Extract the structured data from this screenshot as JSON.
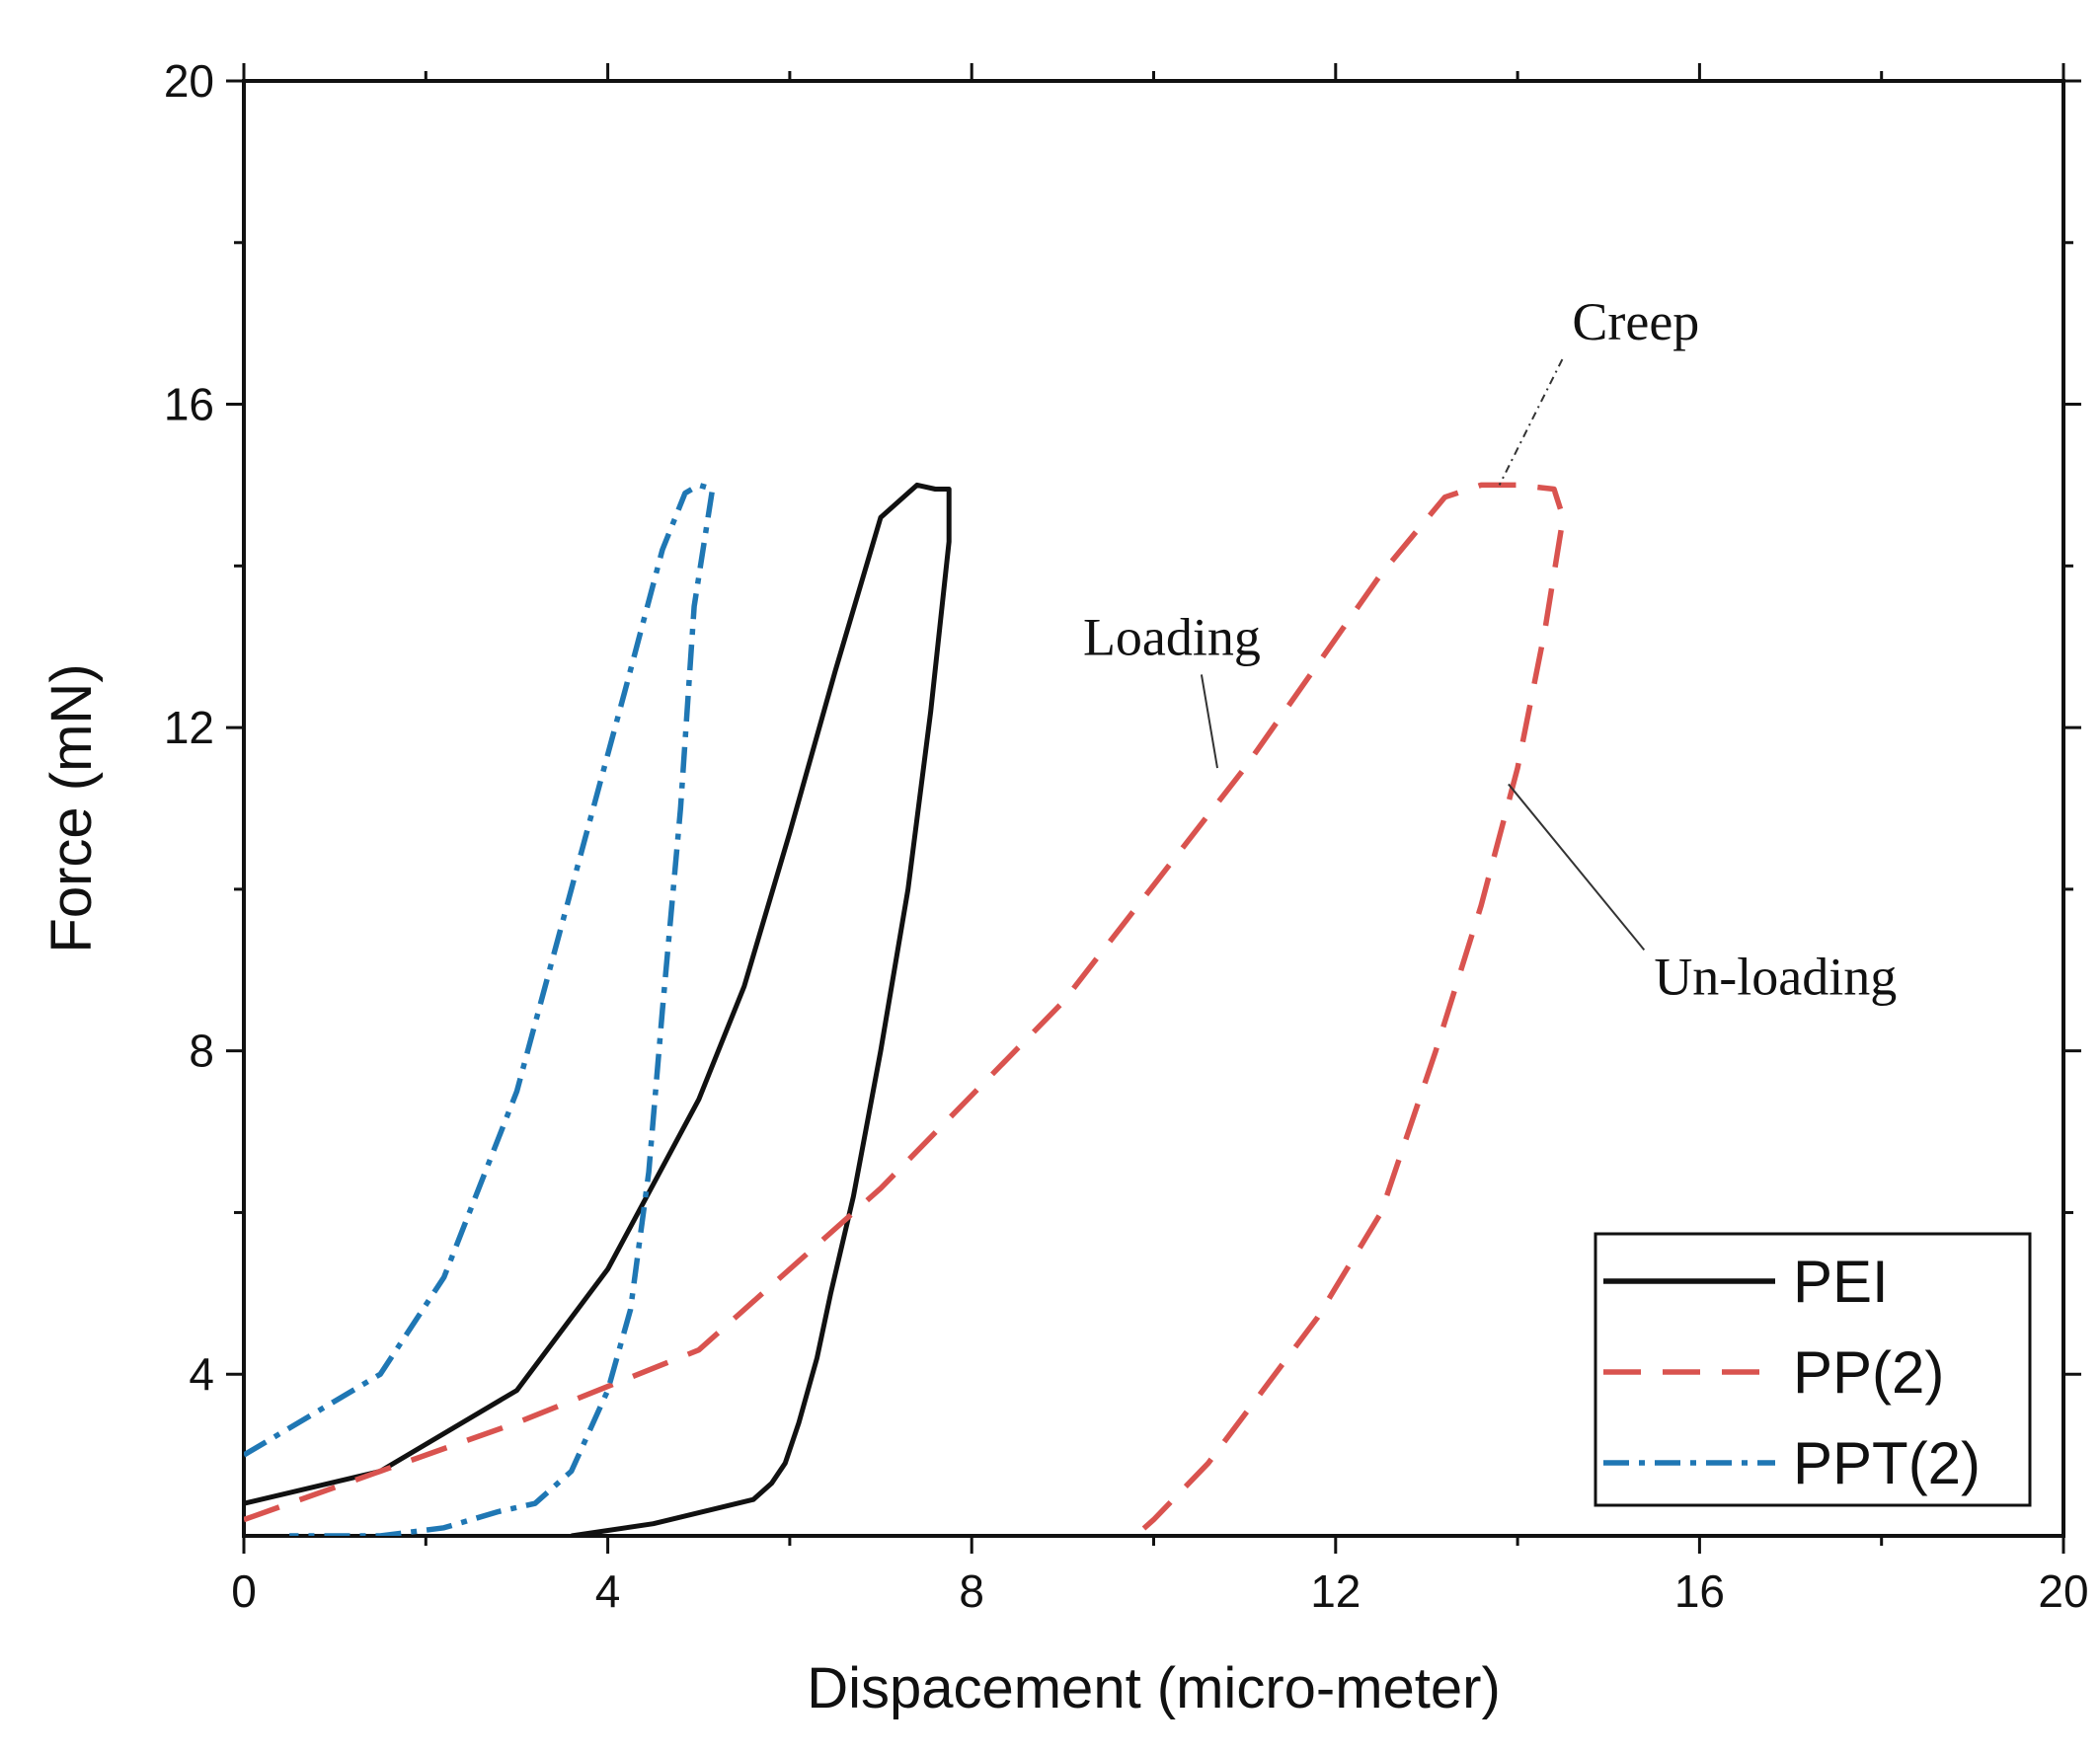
{
  "chart_data": {
    "type": "line",
    "title": "",
    "xlabel": "Dispacement (micro-meter)",
    "ylabel": "Force (mN)",
    "xlim": [
      0,
      20
    ],
    "ylim": [
      2,
      20
    ],
    "xticks": [
      "0",
      "4",
      "8",
      "12",
      "16",
      "20"
    ],
    "yticks": [
      "4",
      "8",
      "12",
      "16",
      "20"
    ],
    "grid": false,
    "legend_position": "bottom-right",
    "series": [
      {
        "name": "PEI",
        "color": "#111111",
        "style": "solid",
        "x": [
          0,
          1.5,
          3,
          4,
          5,
          5.5,
          6,
          6.5,
          7,
          7.4,
          7.6,
          7.75,
          7.75,
          7.55,
          7.3,
          7.0,
          6.7,
          6.45,
          6.3,
          6.1,
          5.95,
          5.8,
          5.6,
          4.5,
          3.6
        ],
        "y": [
          2.4,
          2.8,
          3.8,
          5.3,
          7.4,
          8.8,
          10.7,
          12.7,
          14.6,
          15.0,
          14.95,
          14.95,
          14.3,
          12.2,
          10.0,
          8.0,
          6.2,
          5.0,
          4.2,
          3.4,
          2.9,
          2.65,
          2.45,
          2.15,
          2.0
        ],
        "labels": []
      },
      {
        "name": "PP(2)",
        "color": "#d9534f",
        "style": "dashed",
        "x": [
          0,
          1.5,
          3,
          5,
          7,
          9,
          11,
          12.5,
          13.2,
          13.6,
          14.0,
          14.4,
          14.5,
          14.3,
          14.0,
          13.6,
          13.1,
          12.5,
          11.8,
          11.2,
          10.6,
          10.0,
          9.8
        ],
        "y": [
          2.2,
          2.8,
          3.4,
          4.3,
          6.3,
          8.6,
          11.5,
          13.9,
          14.85,
          15.0,
          15.0,
          14.95,
          14.6,
          13.2,
          11.5,
          9.8,
          8.0,
          6.0,
          4.7,
          3.8,
          2.9,
          2.2,
          2.0
        ],
        "labels": []
      },
      {
        "name": "PPT(2)",
        "color": "#1f77b4",
        "style": "dash-dot",
        "x": [
          0,
          1.5,
          2.2,
          3.0,
          3.6,
          4.2,
          4.6,
          4.85,
          5.0,
          5.15,
          4.95,
          4.8,
          4.6,
          4.45,
          4.25,
          4.0,
          3.6,
          3.2,
          2.8,
          2.2,
          1.5,
          0.5
        ],
        "y": [
          3.0,
          4.0,
          5.2,
          7.5,
          10.0,
          12.5,
          14.2,
          14.9,
          15.0,
          14.95,
          13.5,
          11.0,
          8.5,
          6.5,
          4.8,
          3.8,
          2.8,
          2.4,
          2.3,
          2.1,
          2.0,
          2.0
        ],
        "labels": []
      }
    ],
    "annotations": [
      {
        "text": "Creep",
        "x": 14.6,
        "y": 16.8,
        "point_x": 13.8,
        "point_y": 15.0
      },
      {
        "text": "Loading",
        "x": 10.2,
        "y": 12.9,
        "point_x": 10.7,
        "point_y": 11.5
      },
      {
        "text": "Un-loading",
        "x": 15.5,
        "y": 8.7,
        "point_x": 13.9,
        "point_y": 11.3
      }
    ]
  }
}
